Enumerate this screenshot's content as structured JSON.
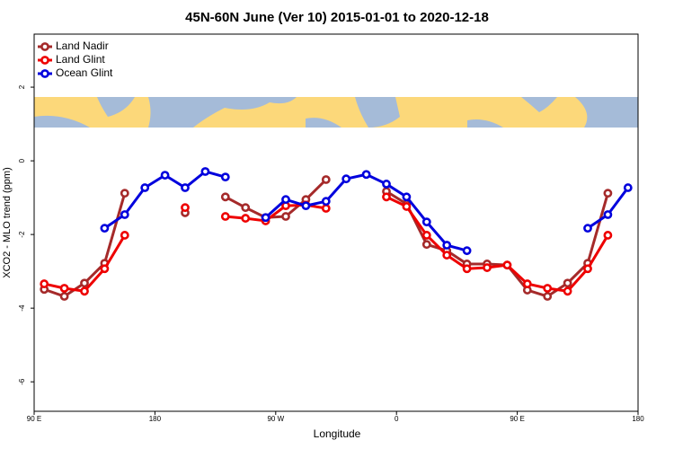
{
  "chart_data": {
    "type": "line",
    "title": "45N-60N June (Ver 10)   2015-01-01 to 2020-12-18",
    "x_label": "Longitude",
    "y_label": "XCO2 - MLO trend (ppm)",
    "x": [
      97.5,
      112.5,
      127.5,
      142.5,
      157.5,
      172.5,
      187.5,
      202.5,
      217.5,
      232.5,
      247.5,
      262.5,
      277.5,
      292.5,
      307.5,
      322.5,
      337.5,
      352.5,
      367.5,
      382.5,
      397.5,
      412.5,
      427.5,
      442.5,
      457.5,
      472.5,
      487.5,
      502.5,
      517.5,
      532.5
    ],
    "series": [
      {
        "name": "Land Nadir",
        "color": "#a52a2a",
        "values": [
          -3.49,
          -3.68,
          -3.32,
          -2.78,
          -0.88,
          null,
          null,
          -1.41,
          null,
          -0.98,
          -1.27,
          -1.54,
          -1.51,
          -1.05,
          -0.51,
          null,
          null,
          -0.83,
          -1.17,
          -2.27,
          -2.44,
          -2.8,
          -2.8,
          -2.83,
          -3.51,
          -3.68,
          -3.32,
          -2.78,
          -0.88,
          null
        ]
      },
      {
        "name": "Land Glint",
        "color": "#ee0000",
        "values": [
          -3.34,
          -3.46,
          -3.54,
          -2.93,
          -2.02,
          null,
          null,
          -1.27,
          null,
          -1.51,
          -1.56,
          -1.63,
          -1.22,
          -1.2,
          -1.29,
          null,
          null,
          -0.98,
          -1.24,
          -2.02,
          -2.56,
          -2.93,
          -2.9,
          -2.83,
          -3.34,
          -3.46,
          -3.54,
          -2.93,
          -2.02,
          null
        ]
      },
      {
        "name": "Ocean Glint",
        "color": "#0000dd",
        "values": [
          null,
          null,
          null,
          -1.83,
          -1.46,
          -0.73,
          -0.39,
          -0.73,
          -0.29,
          -0.44,
          null,
          -1.54,
          -1.05,
          -1.22,
          -1.1,
          -0.49,
          -0.37,
          -0.63,
          -0.98,
          -1.66,
          -2.29,
          -2.44,
          null,
          null,
          null,
          null,
          null,
          -1.83,
          -1.46,
          -0.73
        ]
      }
    ],
    "xlim": [
      90,
      540
    ],
    "ylim": [
      -6.8,
      3.44
    ],
    "xticks": [
      {
        "value": 90,
        "label": "90 E"
      },
      180,
      {
        "value": 270,
        "label": "90 W"
      },
      {
        "value": 360,
        "label": "0"
      },
      {
        "value": 450,
        "label": "90 E"
      },
      {
        "value": 540,
        "label": "180"
      }
    ],
    "yticks": [
      2,
      0,
      -2,
      -4,
      -6
    ],
    "legend": "top-left"
  }
}
